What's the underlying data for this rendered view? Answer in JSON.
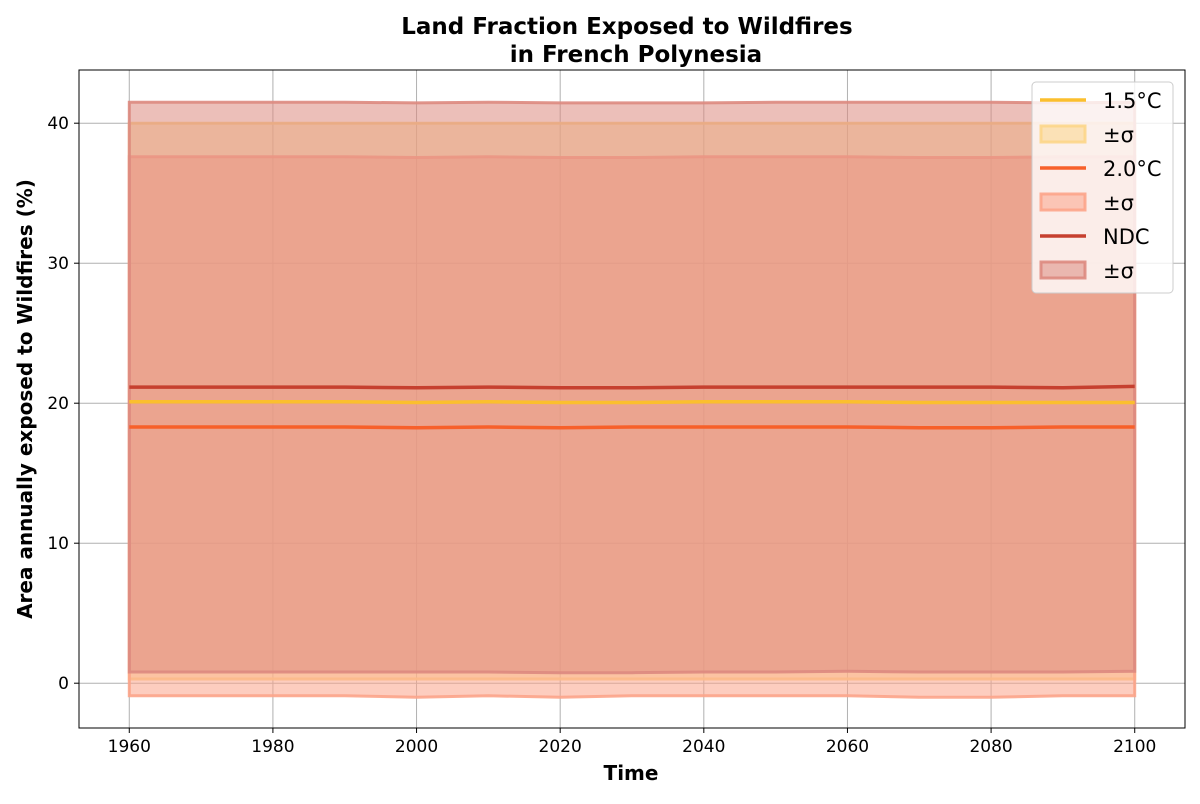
{
  "chart_data": {
    "type": "line",
    "title_line1": "Land Fraction Exposed to Wildfires",
    "title_line2": "in French Polynesia",
    "xlabel": "Time",
    "ylabel": "Area annually exposed to Wildfires (%)",
    "xlim": [
      1953,
      2107
    ],
    "ylim": [
      -3.2,
      43.8
    ],
    "xticks": [
      1960,
      1980,
      2000,
      2020,
      2040,
      2060,
      2080,
      2100
    ],
    "yticks": [
      0,
      10,
      20,
      30,
      40
    ],
    "grid": true,
    "legend_position": "top-right",
    "x": [
      1960,
      1970,
      1980,
      1990,
      2000,
      2010,
      2020,
      2030,
      2040,
      2050,
      2060,
      2070,
      2080,
      2090,
      2100
    ],
    "series": [
      {
        "name": "1.5°C",
        "band_label": "±σ",
        "color": "#fbbf2e",
        "band_color": "#fcd68a",
        "values": [
          20.1,
          20.1,
          20.1,
          20.1,
          20.05,
          20.1,
          20.05,
          20.05,
          20.1,
          20.1,
          20.1,
          20.05,
          20.05,
          20.05,
          20.05
        ],
        "lower": [
          0.3,
          0.3,
          0.3,
          0.3,
          0.3,
          0.3,
          0.3,
          0.3,
          0.3,
          0.3,
          0.3,
          0.3,
          0.3,
          0.3,
          0.3
        ],
        "upper": [
          40.0,
          40.0,
          40.0,
          40.0,
          40.0,
          40.0,
          40.0,
          40.0,
          40.0,
          40.0,
          40.0,
          40.0,
          40.0,
          40.0,
          40.0
        ]
      },
      {
        "name": "2.0°C",
        "band_label": "±σ",
        "color": "#f7602a",
        "band_color": "#fca48a",
        "values": [
          18.3,
          18.3,
          18.3,
          18.3,
          18.25,
          18.3,
          18.25,
          18.3,
          18.3,
          18.3,
          18.3,
          18.25,
          18.25,
          18.3,
          18.3
        ],
        "lower": [
          -0.9,
          -0.9,
          -0.9,
          -0.9,
          -1.0,
          -0.9,
          -1.0,
          -0.9,
          -0.9,
          -0.9,
          -0.9,
          -1.0,
          -1.0,
          -0.9,
          -0.9
        ],
        "upper": [
          37.6,
          37.6,
          37.6,
          37.6,
          37.55,
          37.6,
          37.55,
          37.55,
          37.6,
          37.6,
          37.6,
          37.55,
          37.55,
          37.6,
          37.6
        ]
      },
      {
        "name": "NDC",
        "band_label": "±σ",
        "color": "#c6402f",
        "band_color": "#dd8a80",
        "values": [
          21.15,
          21.15,
          21.15,
          21.15,
          21.1,
          21.15,
          21.1,
          21.1,
          21.15,
          21.15,
          21.15,
          21.15,
          21.15,
          21.1,
          21.2
        ],
        "lower": [
          0.8,
          0.8,
          0.8,
          0.8,
          0.8,
          0.8,
          0.75,
          0.75,
          0.8,
          0.8,
          0.85,
          0.8,
          0.8,
          0.8,
          0.85
        ],
        "upper": [
          41.5,
          41.5,
          41.5,
          41.5,
          41.45,
          41.5,
          41.45,
          41.45,
          41.45,
          41.5,
          41.5,
          41.5,
          41.5,
          41.45,
          41.5
        ]
      }
    ]
  }
}
